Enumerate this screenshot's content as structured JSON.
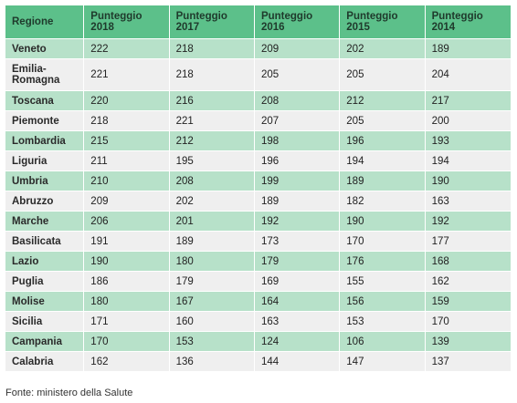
{
  "table": {
    "headers": [
      {
        "line1": "Regione",
        "line2": ""
      },
      {
        "line1": "Punteggio",
        "line2": "2018"
      },
      {
        "line1": "Punteggio",
        "line2": "2017"
      },
      {
        "line1": "Punteggio",
        "line2": "2016"
      },
      {
        "line1": "Punteggio",
        "line2": "2015"
      },
      {
        "line1": "Punteggio",
        "line2": "2014"
      }
    ],
    "rows": [
      {
        "region": "Veneto",
        "v2018": "222",
        "v2017": "218",
        "v2016": "209",
        "v2015": "202",
        "v2014": "189"
      },
      {
        "region": "Emilia-Romagna",
        "region_line1": "Emilia-",
        "region_line2": "Romagna",
        "v2018": "221",
        "v2017": "218",
        "v2016": "205",
        "v2015": "205",
        "v2014": "204"
      },
      {
        "region": "Toscana",
        "v2018": "220",
        "v2017": "216",
        "v2016": "208",
        "v2015": "212",
        "v2014": "217"
      },
      {
        "region": "Piemonte",
        "v2018": "218",
        "v2017": "221",
        "v2016": "207",
        "v2015": "205",
        "v2014": "200"
      },
      {
        "region": "Lombardia",
        "v2018": "215",
        "v2017": "212",
        "v2016": "198",
        "v2015": "196",
        "v2014": "193"
      },
      {
        "region": "Liguria",
        "v2018": "211",
        "v2017": "195",
        "v2016": "196",
        "v2015": "194",
        "v2014": "194"
      },
      {
        "region": "Umbria",
        "v2018": "210",
        "v2017": "208",
        "v2016": "199",
        "v2015": "189",
        "v2014": "190"
      },
      {
        "region": "Abruzzo",
        "v2018": "209",
        "v2017": "202",
        "v2016": "189",
        "v2015": "182",
        "v2014": "163"
      },
      {
        "region": "Marche",
        "v2018": "206",
        "v2017": "201",
        "v2016": "192",
        "v2015": "190",
        "v2014": "192"
      },
      {
        "region": "Basilicata",
        "v2018": "191",
        "v2017": "189",
        "v2016": "173",
        "v2015": "170",
        "v2014": "177"
      },
      {
        "region": "Lazio",
        "v2018": "190",
        "v2017": "180",
        "v2016": "179",
        "v2015": "176",
        "v2014": "168"
      },
      {
        "region": "Puglia",
        "v2018": "186",
        "v2017": "179",
        "v2016": "169",
        "v2015": "155",
        "v2014": "162"
      },
      {
        "region": "Molise",
        "v2018": "180",
        "v2017": "167",
        "v2016": "164",
        "v2015": "156",
        "v2014": "159"
      },
      {
        "region": "Sicilia",
        "v2018": "171",
        "v2017": "160",
        "v2016": "163",
        "v2015": "153",
        "v2014": "170"
      },
      {
        "region": "Campania",
        "v2018": "170",
        "v2017": "153",
        "v2016": "124",
        "v2015": "106",
        "v2014": "139"
      },
      {
        "region": "Calabria",
        "v2018": "162",
        "v2017": "136",
        "v2016": "144",
        "v2015": "147",
        "v2014": "137"
      }
    ]
  },
  "source": "Fonte: ministero della Salute",
  "colors": {
    "header_bg": "#5cc08a",
    "row_green": "#b7e1c9",
    "row_gray": "#efefef"
  }
}
